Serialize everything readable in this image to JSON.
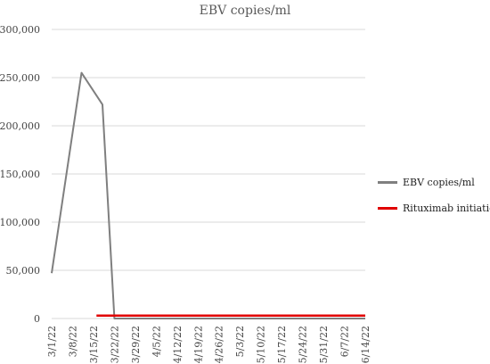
{
  "chart_data": {
    "type": "line",
    "title": "EBV copies/ml",
    "xlabel": "",
    "ylabel": "",
    "ylim": [
      0,
      300000
    ],
    "yticks": [
      0,
      50000,
      100000,
      150000,
      200000,
      250000,
      300000
    ],
    "ytick_labels": [
      "0",
      "50,000",
      "100,000",
      "150,000",
      "200,000",
      "250,000",
      "300,000"
    ],
    "x_tick_labels": [
      "3/1/22",
      "3/8/22",
      "3/15/22",
      "3/22/22",
      "3/29/22",
      "4/5/22",
      "4/12/22",
      "4/19/22",
      "4/26/22",
      "5/3/22",
      "5/10/22",
      "5/17/22",
      "5/24/22",
      "5/31/22",
      "6/7/22",
      "6/14/22"
    ],
    "grid": "horizontal",
    "legend_position": "right",
    "series": [
      {
        "name": "EBV copies/ml",
        "color": "#7f7f7f",
        "points": [
          {
            "x": "3/1/22",
            "y": 47000
          },
          {
            "x": "3/11/22",
            "y": 255000
          },
          {
            "x": "3/18/22",
            "y": 222000
          },
          {
            "x": "3/22/22",
            "y": 0
          },
          {
            "x": "6/14/22",
            "y": 0
          }
        ]
      },
      {
        "name": "Rituximab initiation",
        "color": "#e00000",
        "points": [
          {
            "x": "3/16/22",
            "y": 3000
          },
          {
            "x": "6/14/22",
            "y": 3000
          }
        ]
      }
    ]
  }
}
